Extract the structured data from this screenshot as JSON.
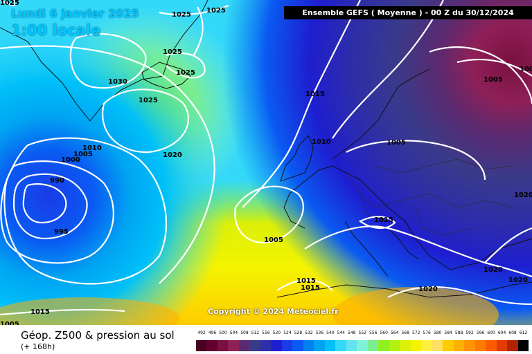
{
  "header": {
    "date": "Lundi 6 janvier 2025",
    "local_time": "1:00 locale",
    "run": "Ensemble GEFS  ( Moyenne )  - 00 Z du 30/12/2024"
  },
  "copyright": "Copyright © 2024 Meteociel.fr",
  "footer": {
    "title": "Géop. Z500 & pression au sol",
    "subtitle": "(+ 168h)"
  },
  "isobar_labels": [
    "1025",
    "1025",
    "1025",
    "1025",
    "1025",
    "1030",
    "1025",
    "1020",
    "1015",
    "1010",
    "1005",
    "1005",
    "1010",
    "1005",
    "1000",
    "990",
    "995",
    "1005",
    "1015",
    "1015",
    "1015",
    "1020",
    "1020",
    "1020",
    "1015",
    "1020",
    "1005",
    "1000"
  ],
  "legend": {
    "values": [
      "492",
      "496",
      "500",
      "504",
      "508",
      "512",
      "516",
      "520",
      "524",
      "528",
      "532",
      "536",
      "540",
      "544",
      "548",
      "552",
      "556",
      "560",
      "564",
      "568",
      "572",
      "576",
      "580",
      "584",
      "588",
      "592",
      "596",
      "600",
      "604",
      "608",
      "612"
    ],
    "colors": [
      "#4a0020",
      "#62002e",
      "#7a1040",
      "#8e2058",
      "#5a2a70",
      "#3a3a8a",
      "#2e2ea8",
      "#1e1ecf",
      "#1a3ce8",
      "#0a5af2",
      "#0080f0",
      "#00a4f2",
      "#00c0f8",
      "#34d8f8",
      "#62e4f0",
      "#7ef2d8",
      "#7aee90",
      "#8ef020",
      "#b4f010",
      "#dcf008",
      "#f4f400",
      "#fff040",
      "#ffe060",
      "#ffcc00",
      "#ffb000",
      "#ff9400",
      "#ff7a00",
      "#ff5a00",
      "#e43c00",
      "#b02400",
      "#000000"
    ]
  }
}
